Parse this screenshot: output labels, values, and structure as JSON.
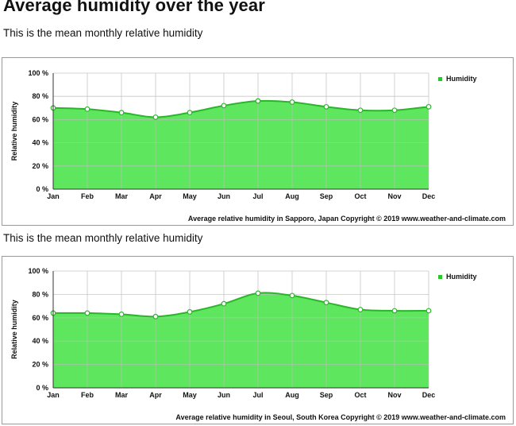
{
  "page": {
    "title": "Average humidity over the year",
    "subtitles": [
      "This is the mean monthly relative humidity",
      "This is the mean monthly relative humidity"
    ]
  },
  "colors": {
    "fill": "#5ee65e",
    "line": "#2cb52c",
    "marker_fill": "#ffffff",
    "grid": "#bdbdbd",
    "legend": "#2cc52c"
  },
  "chart_data": [
    {
      "type": "area",
      "categories": [
        "Jan",
        "Feb",
        "Mar",
        "Apr",
        "May",
        "Jun",
        "Jul",
        "Aug",
        "Sep",
        "Oct",
        "Nov",
        "Dec"
      ],
      "series": [
        {
          "name": "Humidity",
          "values": [
            70,
            69,
            66,
            62,
            66,
            72,
            76,
            75,
            71,
            68,
            68,
            71
          ]
        }
      ],
      "ylabel": "Relative humidity",
      "ylim": [
        0,
        100
      ],
      "yticks": [
        "0 %",
        "20 %",
        "40 %",
        "60 %",
        "80 %",
        "100 %"
      ],
      "caption": "Average relative humidity in Sapporo, Japan   Copyright © 2019 www.weather-and-climate.com",
      "grid": true,
      "legend_position": "top-right"
    },
    {
      "type": "area",
      "categories": [
        "Jan",
        "Feb",
        "Mar",
        "Apr",
        "May",
        "Jun",
        "Jul",
        "Aug",
        "Sep",
        "Oct",
        "Nov",
        "Dec"
      ],
      "series": [
        {
          "name": "Humidity",
          "values": [
            64,
            64,
            63,
            61,
            65,
            72,
            81,
            79,
            73,
            67,
            66,
            66
          ]
        }
      ],
      "ylabel": "Relative humidity",
      "ylim": [
        0,
        100
      ],
      "yticks": [
        "0 %",
        "20 %",
        "40 %",
        "60 %",
        "80 %",
        "100 %"
      ],
      "caption": "Average relative humidity in Seoul, South Korea   Copyright © 2019 www.weather-and-climate.com",
      "grid": true,
      "legend_position": "top-right"
    }
  ]
}
